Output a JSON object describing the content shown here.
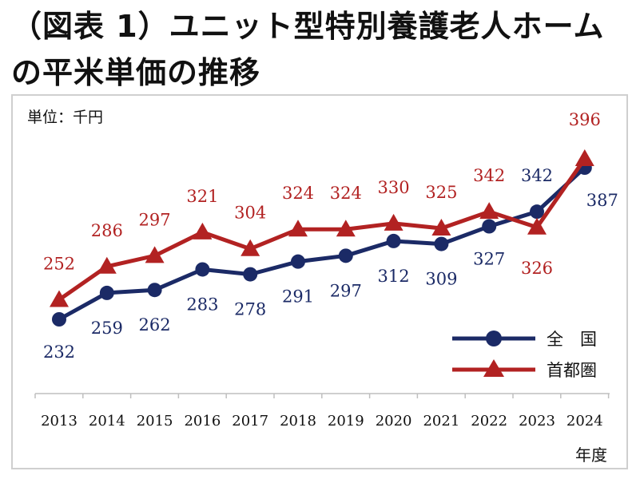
{
  "title": "（図表 1）ユニット型特別養護老人ホームの平米単価の推移",
  "unit_label": "単位：千円",
  "chart_data": {
    "type": "line",
    "title": "（図表 1）ユニット型特別養護老人ホームの平米単価の推移",
    "xlabel": "年度",
    "ylabel": "単位：千円",
    "categories": [
      "2013",
      "2014",
      "2015",
      "2016",
      "2017",
      "2018",
      "2019",
      "2020",
      "2021",
      "2022",
      "2023",
      "2024"
    ],
    "ylim": [
      215,
      405
    ],
    "grid": false,
    "legend_position": "bottom-right",
    "series": [
      {
        "name": "全　国",
        "color": "#1b2a66",
        "marker": "circle",
        "values": [
          232,
          259,
          262,
          283,
          278,
          291,
          297,
          312,
          309,
          327,
          342,
          387
        ]
      },
      {
        "name": "首都圏",
        "color": "#b22222",
        "marker": "triangle",
        "values": [
          252,
          286,
          297,
          321,
          304,
          324,
          324,
          330,
          325,
          342,
          326,
          396
        ]
      }
    ]
  }
}
